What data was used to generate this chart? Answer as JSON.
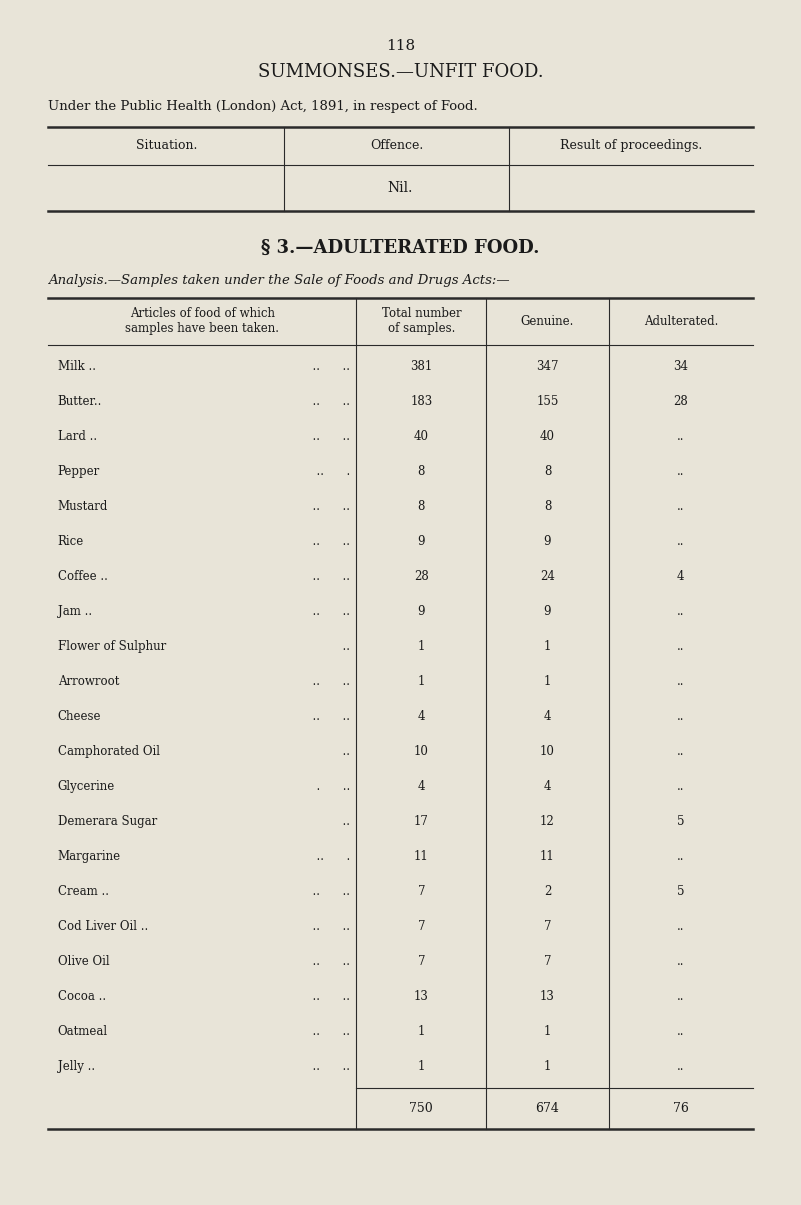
{
  "page_number": "118",
  "title1": "SUMMONSES.—UNFIT FOOD.",
  "subtitle1": "Under the Public Health (London) Act, 1891, in respect of Food.",
  "table1_headers": [
    "Situation.",
    "Offence.",
    "Result of proceedings."
  ],
  "table1_nil": "Nil.",
  "section_header": "§ 3.—ADULTERATED FOOD.",
  "analysis_text": "Analysis.—Samples taken under the Sale of Foods and Drugs Acts:—",
  "table2_headers": [
    "Articles of food of which\nsamples have been taken.",
    "Total number\nof samples.",
    "Genuine.",
    "Adulterated."
  ],
  "table2_rows": [
    [
      "Milk ..",
      "  ..      ..",
      "381",
      "347",
      "34"
    ],
    [
      "Butter..",
      "  ..      ..",
      "183",
      "155",
      "28"
    ],
    [
      "Lard ..",
      "  ..      ..",
      "40",
      "40",
      ".."
    ],
    [
      "Pepper",
      "  ..      .",
      "8",
      "8",
      ".."
    ],
    [
      "Mustard",
      "  ..      ..",
      "8",
      "8",
      ".."
    ],
    [
      "Rice",
      "  ..      ..",
      "9",
      "9",
      ".."
    ],
    [
      "Coffee ..",
      "  ..      ..",
      "28",
      "24",
      "4"
    ],
    [
      "Jam ..",
      "  ..      ..",
      "9",
      "9",
      ".."
    ],
    [
      "Flower of Sulphur",
      "  ..",
      "1",
      "1",
      ".."
    ],
    [
      "Arrowroot",
      "  ..      ..",
      "1",
      "1",
      ".."
    ],
    [
      "Cheese",
      "  ..      ..",
      "4",
      "4",
      ".."
    ],
    [
      "Camphorated Oil",
      "  ..",
      "10",
      "10",
      ".."
    ],
    [
      "Glycerine",
      "  .      ..",
      "4",
      "4",
      ".."
    ],
    [
      "Demerara Sugar",
      "  ..",
      "17",
      "12",
      "5"
    ],
    [
      "Margarine",
      "  ..      .",
      "11",
      "11",
      ".."
    ],
    [
      "Cream ..",
      "  ..      ..",
      "7",
      "2",
      "5"
    ],
    [
      "Cod Liver Oil ..",
      "  ..      ..",
      "7",
      "7",
      ".."
    ],
    [
      "Olive Oil",
      "  ..      ..",
      "7",
      "7",
      ".."
    ],
    [
      "Cocoa ..",
      "  ..      ..",
      "13",
      "13",
      ".."
    ],
    [
      "Oatmeal",
      "  ..      ..",
      "1",
      "1",
      ".."
    ],
    [
      "Jelly ..",
      "  ..      ..",
      "1",
      "1",
      ".."
    ]
  ],
  "table2_totals": [
    "",
    "750",
    "674",
    "76"
  ],
  "bg_color": "#e8e4d8",
  "text_color": "#1a1a1a",
  "line_color": "#2a2a2a"
}
